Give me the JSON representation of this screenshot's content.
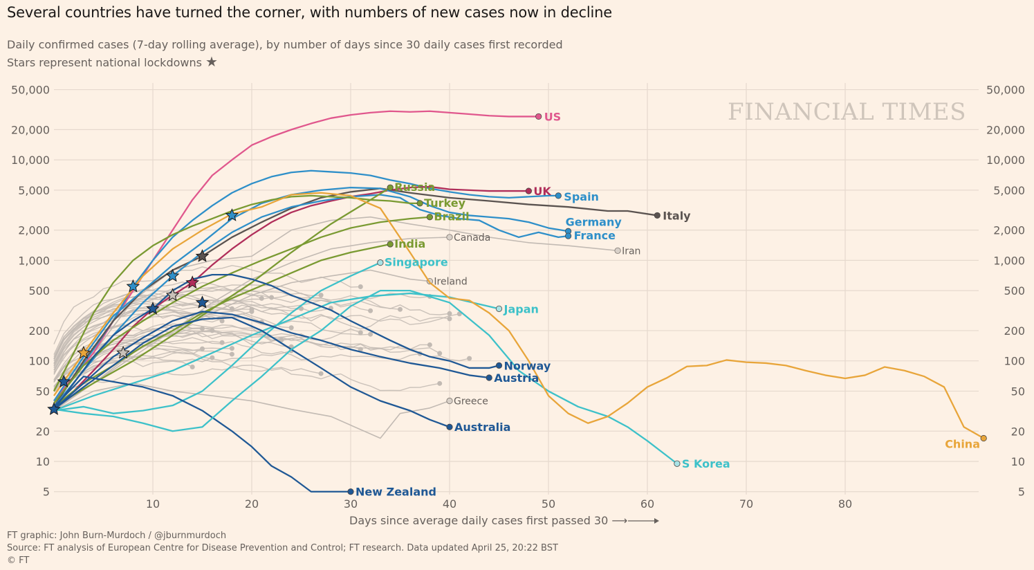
{
  "header": {
    "title": "Several countries have turned the corner, with numbers of new cases now in decline",
    "subtitle_line1": "Daily confirmed cases (7-day rolling average), by number of days since 30 daily cases first recorded",
    "subtitle_line2": "Stars represent national lockdowns",
    "star_glyph": "★"
  },
  "watermark": "FINANCIAL TIMES",
  "footer": {
    "credit": "FT graphic: John Burn-Murdoch / @jburnmurdoch",
    "source": "Source: FT analysis of European Centre for Disease Prevention and Control; FT research. Data updated April 25, 20:22 BST",
    "copyright": "© FT"
  },
  "colors": {
    "background": "#fdf1e5",
    "grid": "#e6d9ce",
    "grey_line": "#c2bab3",
    "us": "#e0578d",
    "uk": "#b02e5a",
    "italy": "#5a5350",
    "blue": "#2e8fc9",
    "green": "#7a9a32",
    "teal": "#3dc1c9",
    "navy": "#1f5895",
    "orange": "#e8a53a"
  },
  "chart_data": {
    "type": "line",
    "title": "Several countries have turned the corner, with numbers of new cases now in decline",
    "xlabel": "Days since average daily cases first passed 30 ⟶",
    "ylabel": "Daily confirmed cases (7-day rolling average)",
    "yscale": "log",
    "xlim": [
      0,
      95
    ],
    "ylim": [
      5,
      50000
    ],
    "grid": true,
    "x_ticks": [
      10,
      20,
      30,
      40,
      50,
      60,
      70,
      80
    ],
    "y_ticks": [
      {
        "value": 50000,
        "label": "50,000"
      },
      {
        "value": 20000,
        "label": "20,000"
      },
      {
        "value": 10000,
        "label": "10,000"
      },
      {
        "value": 5000,
        "label": "5,000"
      },
      {
        "value": 2000,
        "label": "2,000"
      },
      {
        "value": 1000,
        "label": "1,000"
      },
      {
        "value": 500,
        "label": "500"
      },
      {
        "value": 200,
        "label": "200"
      },
      {
        "value": 100,
        "label": "100"
      },
      {
        "value": 50,
        "label": "50"
      },
      {
        "value": 20,
        "label": "20"
      },
      {
        "value": 10,
        "label": "10"
      },
      {
        "value": 5,
        "label": "5"
      }
    ],
    "series": [
      {
        "name": "US",
        "label": "US",
        "color": "us",
        "label_style": "bold",
        "x": [
          0,
          2,
          4,
          6,
          8,
          10,
          12,
          14,
          16,
          18,
          20,
          22,
          24,
          26,
          28,
          30,
          32,
          34,
          36,
          38,
          40,
          42,
          44,
          46,
          48,
          49
        ],
        "values": [
          40,
          70,
          120,
          250,
          500,
          1000,
          2000,
          4000,
          7000,
          10000,
          14000,
          17000,
          20000,
          23000,
          26000,
          28000,
          29500,
          30500,
          30000,
          30500,
          29500,
          28500,
          27500,
          27000,
          27000,
          27000
        ],
        "stars": []
      },
      {
        "name": "Spain",
        "label": "Spain",
        "color": "blue",
        "label_style": "bold",
        "x": [
          0,
          2,
          4,
          6,
          8,
          10,
          12,
          14,
          16,
          18,
          20,
          22,
          24,
          26,
          28,
          30,
          32,
          34,
          36,
          38,
          40,
          42,
          44,
          46,
          48,
          50,
          51
        ],
        "values": [
          35,
          70,
          130,
          250,
          550,
          1000,
          1700,
          2500,
          3500,
          4700,
          5800,
          6800,
          7500,
          7800,
          7600,
          7400,
          7000,
          6300,
          5800,
          5200,
          4800,
          4500,
          4300,
          4200,
          4300,
          4400,
          4400
        ],
        "stars": [
          {
            "x": 8,
            "y": 550
          }
        ]
      },
      {
        "name": "Italy",
        "label": "Italy",
        "color": "italy",
        "label_style": "bold",
        "x": [
          0,
          3,
          6,
          9,
          12,
          15,
          18,
          21,
          24,
          27,
          30,
          33,
          36,
          40,
          44,
          48,
          52,
          56,
          58,
          61
        ],
        "values": [
          35,
          100,
          250,
          500,
          800,
          1100,
          1700,
          2400,
          3300,
          4200,
          4800,
          5200,
          4700,
          4200,
          3900,
          3600,
          3400,
          3100,
          3100,
          2800
        ],
        "stars": [
          {
            "x": 15,
            "y": 1100
          }
        ]
      },
      {
        "name": "UK",
        "label": "UK",
        "color": "uk",
        "label_style": "bold",
        "x": [
          0,
          2,
          4,
          6,
          8,
          10,
          12,
          14,
          16,
          18,
          20,
          22,
          24,
          26,
          28,
          30,
          32,
          34,
          36,
          38,
          40,
          42,
          44,
          46,
          48
        ],
        "values": [
          33,
          50,
          80,
          130,
          220,
          330,
          450,
          600,
          900,
          1300,
          1800,
          2400,
          3000,
          3500,
          3900,
          4300,
          4600,
          5000,
          5300,
          5400,
          5100,
          5000,
          4900,
          4900,
          4900
        ],
        "stars": [
          {
            "x": 14,
            "y": 600
          }
        ]
      },
      {
        "name": "Germany",
        "label": "Germany",
        "color": "blue",
        "label_style": "bold",
        "x": [
          0,
          3,
          6,
          9,
          12,
          15,
          18,
          21,
          24,
          27,
          30,
          33,
          36,
          38,
          40,
          42,
          44,
          46,
          48,
          50,
          52
        ],
        "values": [
          40,
          110,
          280,
          500,
          900,
          1500,
          2600,
          3700,
          4500,
          5000,
          5300,
          5200,
          4300,
          3500,
          3000,
          2800,
          2700,
          2600,
          2400,
          2100,
          1950
        ],
        "stars": [
          {
            "x": 18,
            "y": 2800
          }
        ]
      },
      {
        "name": "France",
        "label": "France",
        "color": "blue",
        "label_style": "bold",
        "x": [
          0,
          3,
          6,
          9,
          12,
          15,
          18,
          21,
          24,
          27,
          30,
          33,
          35,
          37,
          39,
          41,
          43,
          45,
          47,
          49,
          51,
          52
        ],
        "values": [
          35,
          80,
          180,
          380,
          700,
          1200,
          1900,
          2700,
          3400,
          3900,
          4300,
          4500,
          4200,
          3200,
          2800,
          2600,
          2500,
          2000,
          1700,
          1900,
          1700,
          1750
        ],
        "stars": [
          {
            "x": 12,
            "y": 700
          }
        ]
      },
      {
        "name": "Russia",
        "label": "Russia",
        "color": "green",
        "label_style": "bold",
        "x": [
          0,
          4,
          8,
          12,
          16,
          20,
          24,
          28,
          32,
          34
        ],
        "values": [
          35,
          60,
          100,
          180,
          330,
          600,
          1200,
          2300,
          4000,
          5300
        ],
        "stars": []
      },
      {
        "name": "Turkey",
        "label": "Turkey",
        "color": "green",
        "label_style": "bold",
        "x": [
          0,
          2,
          4,
          6,
          8,
          10,
          12,
          14,
          16,
          18,
          20,
          22,
          24,
          26,
          28,
          30,
          32,
          34,
          36,
          37
        ],
        "values": [
          50,
          120,
          300,
          600,
          1000,
          1400,
          1800,
          2200,
          2600,
          3100,
          3600,
          4000,
          4300,
          4400,
          4300,
          4200,
          4000,
          3900,
          3700,
          3700
        ],
        "stars": []
      },
      {
        "name": "Brazil",
        "label": "Brazil",
        "color": "green",
        "label_style": "bold",
        "x": [
          0,
          3,
          6,
          9,
          12,
          15,
          18,
          21,
          24,
          27,
          30,
          33,
          36,
          38
        ],
        "values": [
          38,
          90,
          160,
          250,
          380,
          550,
          750,
          1000,
          1300,
          1700,
          2100,
          2400,
          2600,
          2700
        ],
        "stars": []
      },
      {
        "name": "India",
        "label": "India",
        "color": "green",
        "label_style": "bold",
        "x": [
          0,
          3,
          6,
          9,
          12,
          15,
          18,
          21,
          24,
          27,
          30,
          34
        ],
        "values": [
          35,
          60,
          90,
          140,
          200,
          300,
          420,
          560,
          750,
          1000,
          1200,
          1450
        ],
        "stars": []
      },
      {
        "name": "Singapore",
        "label": "Singapore",
        "color": "teal",
        "label_style": "bold",
        "x": [
          0,
          3,
          6,
          9,
          12,
          15,
          18,
          21,
          24,
          27,
          30,
          33
        ],
        "values": [
          32,
          35,
          30,
          32,
          36,
          50,
          90,
          170,
          300,
          500,
          700,
          950
        ],
        "stars": []
      },
      {
        "name": "Japan",
        "label": "Japan",
        "color": "teal",
        "label_style": "bold",
        "x": [
          0,
          4,
          8,
          12,
          16,
          20,
          24,
          28,
          32,
          36,
          40,
          45
        ],
        "values": [
          32,
          45,
          60,
          80,
          120,
          180,
          260,
          380,
          440,
          470,
          430,
          330
        ],
        "stars": []
      },
      {
        "name": "Norway",
        "label": "Norway",
        "color": "navy",
        "label_style": "bold",
        "x": [
          0,
          2,
          4,
          6,
          8,
          10,
          12,
          14,
          16,
          18,
          20,
          22,
          24,
          26,
          28,
          30,
          32,
          34,
          36,
          38,
          40,
          42,
          44,
          45
        ],
        "values": [
          33,
          60,
          110,
          180,
          250,
          330,
          500,
          650,
          720,
          720,
          650,
          560,
          450,
          380,
          320,
          250,
          200,
          160,
          130,
          110,
          100,
          85,
          85,
          90
        ],
        "stars": [
          {
            "x": 10,
            "y": 330
          }
        ]
      },
      {
        "name": "Austria",
        "label": "Austria",
        "color": "navy",
        "label_style": "bold",
        "x": [
          0,
          3,
          6,
          9,
          12,
          15,
          18,
          21,
          24,
          27,
          30,
          33,
          36,
          39,
          42,
          44
        ],
        "values": [
          33,
          60,
          110,
          170,
          250,
          310,
          290,
          240,
          190,
          160,
          130,
          110,
          95,
          85,
          72,
          68
        ],
        "stars": [
          {
            "x": 15,
            "y": 380
          }
        ]
      },
      {
        "name": "Australia",
        "label": "Australia",
        "color": "navy",
        "label_style": "bold",
        "x": [
          0,
          3,
          6,
          9,
          12,
          15,
          18,
          21,
          24,
          27,
          30,
          33,
          36,
          38,
          40
        ],
        "values": [
          33,
          55,
          90,
          150,
          220,
          260,
          270,
          200,
          130,
          85,
          55,
          40,
          32,
          26,
          22
        ],
        "stars": []
      },
      {
        "name": "New Zealand",
        "label": "New Zealand",
        "color": "navy",
        "label_style": "bold",
        "x": [
          0,
          3,
          6,
          9,
          12,
          15,
          18,
          20,
          22,
          24,
          26,
          28,
          30
        ],
        "values": [
          35,
          70,
          62,
          55,
          45,
          32,
          20,
          14,
          9,
          7,
          5,
          5,
          5
        ],
        "stars": []
      },
      {
        "name": "S Korea",
        "label": "S Korea",
        "color": "teal",
        "label_style": "bold",
        "x": [
          0,
          3,
          6,
          9,
          12,
          15,
          18,
          21,
          24,
          27,
          30,
          33,
          36,
          40,
          44,
          47,
          50,
          53,
          56,
          58,
          60,
          63
        ],
        "values": [
          33,
          30,
          28,
          24,
          20,
          22,
          40,
          70,
          130,
          200,
          350,
          500,
          500,
          380,
          180,
          80,
          50,
          35,
          28,
          22,
          16,
          9.5
        ],
        "stars": []
      },
      {
        "name": "China",
        "label": "China",
        "color": "orange",
        "label_style": "bold",
        "x": [
          0,
          3,
          6,
          9,
          12,
          15,
          18,
          21,
          24,
          27,
          30,
          33,
          36,
          38,
          40,
          42,
          44,
          46,
          48,
          50,
          52,
          54,
          56,
          58,
          60,
          62,
          64,
          66,
          68,
          70,
          72,
          74,
          76,
          78,
          80,
          82,
          84,
          86,
          88,
          90,
          92,
          94
        ],
        "values": [
          45,
          120,
          300,
          700,
          1300,
          2000,
          2900,
          3400,
          4500,
          4700,
          4400,
          3300,
          1200,
          600,
          420,
          400,
          300,
          200,
          100,
          45,
          30,
          24,
          28,
          38,
          55,
          68,
          88,
          90,
          102,
          97,
          95,
          90,
          80,
          72,
          67,
          72,
          87,
          80,
          70,
          55,
          22,
          17
        ],
        "stars": [
          {
            "x": 3,
            "y": 120
          }
        ]
      },
      {
        "name": "Canada",
        "label": "Canada",
        "color": "grey",
        "label_style": "plain",
        "x": [
          0,
          4,
          8,
          12,
          16,
          20,
          24,
          28,
          32,
          36,
          40
        ],
        "values": [
          33,
          60,
          110,
          200,
          380,
          650,
          950,
          1300,
          1500,
          1650,
          1700
        ],
        "stars": []
      },
      {
        "name": "Iran",
        "label": "Iran",
        "color": "grey",
        "label_style": "plain",
        "x": [
          0,
          4,
          8,
          12,
          16,
          20,
          24,
          28,
          32,
          36,
          40,
          44,
          48,
          52,
          57
        ],
        "values": [
          40,
          120,
          400,
          800,
          1000,
          1100,
          2000,
          2500,
          2700,
          2300,
          2000,
          1700,
          1500,
          1400,
          1250
        ],
        "stars": [
          {
            "x": 12,
            "y": 450
          }
        ]
      },
      {
        "name": "Ireland",
        "label": "Ireland",
        "color": "grey",
        "label_style": "plain",
        "x": [
          0,
          4,
          8,
          12,
          16,
          20,
          24,
          28,
          32,
          36,
          38
        ],
        "values": [
          32,
          60,
          120,
          200,
          300,
          450,
          600,
          700,
          800,
          650,
          620
        ],
        "stars": [
          {
            "x": 7,
            "y": 120
          }
        ]
      },
      {
        "name": "Greece",
        "label": "Greece",
        "color": "grey",
        "label_style": "plain",
        "x": [
          0,
          4,
          8,
          12,
          16,
          20,
          24,
          28,
          33,
          35,
          38,
          40
        ],
        "values": [
          32,
          50,
          60,
          50,
          45,
          40,
          33,
          28,
          17,
          30,
          34,
          40
        ],
        "stars": []
      }
    ]
  }
}
